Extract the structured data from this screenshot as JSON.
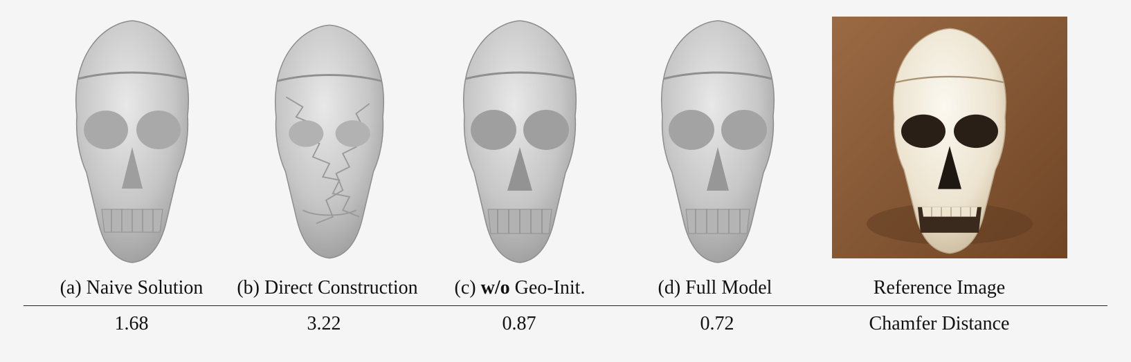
{
  "panels": [
    {
      "caption_prefix": "(a) ",
      "caption_bold": "",
      "caption_rest": "Naive Solution",
      "value": "1.68"
    },
    {
      "caption_prefix": "(b) ",
      "caption_bold": "",
      "caption_rest": "Direct Construction",
      "value": "3.22"
    },
    {
      "caption_prefix": "(c) ",
      "caption_bold": "w/o",
      "caption_rest": " Geo-Init.",
      "value": "0.87"
    },
    {
      "caption_prefix": "(d) ",
      "caption_bold": "",
      "caption_rest": "Full Model",
      "value": "0.72"
    }
  ],
  "reference": {
    "caption": "Reference Image",
    "metric_label": "Chamfer Distance"
  },
  "colors": {
    "mesh": "#c8c8c8",
    "photo_bg": "#8a5a35",
    "bone": "#f1eadb"
  }
}
